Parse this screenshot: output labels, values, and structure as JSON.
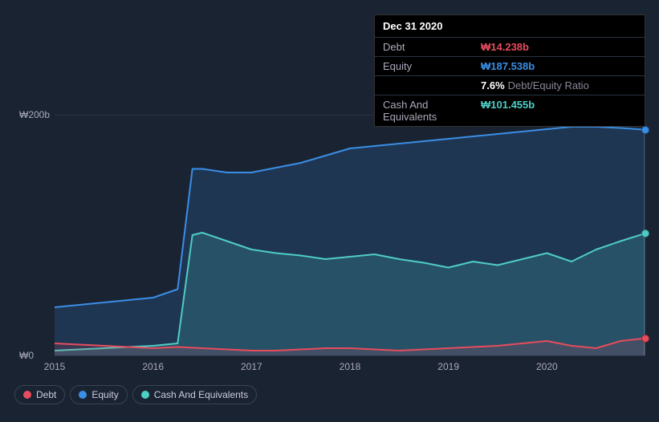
{
  "chart": {
    "type": "area-line",
    "background_color": "#1a2332",
    "plot_background_color": "#1f2a3a",
    "grid_color": "#2a3342",
    "text_color": "#aab",
    "font_size_axis": 12,
    "font_size_tooltip": 13,
    "x_range": [
      2015,
      2021
    ],
    "y_range": [
      0,
      200
    ],
    "y_ticks": [
      {
        "value": 0,
        "label": "₩0"
      },
      {
        "value": 200,
        "label": "₩200b"
      }
    ],
    "x_ticks": [
      {
        "value": 2015,
        "label": "2015"
      },
      {
        "value": 2016,
        "label": "2016"
      },
      {
        "value": 2017,
        "label": "2017"
      },
      {
        "value": 2018,
        "label": "2018"
      },
      {
        "value": 2019,
        "label": "2019"
      },
      {
        "value": 2020,
        "label": "2020"
      }
    ],
    "highlight_x": 2020.98,
    "series": [
      {
        "name": "Equity",
        "color": "#3a8ee6",
        "fill_color": "#3a8ee6",
        "fill_opacity": 0.18,
        "line_width": 2,
        "data": [
          [
            2015.0,
            40
          ],
          [
            2015.25,
            42
          ],
          [
            2015.5,
            44
          ],
          [
            2015.75,
            46
          ],
          [
            2016.0,
            48
          ],
          [
            2016.25,
            55
          ],
          [
            2016.4,
            155
          ],
          [
            2016.5,
            155
          ],
          [
            2016.75,
            152
          ],
          [
            2017.0,
            152
          ],
          [
            2017.25,
            156
          ],
          [
            2017.5,
            160
          ],
          [
            2017.75,
            166
          ],
          [
            2018.0,
            172
          ],
          [
            2018.25,
            174
          ],
          [
            2018.5,
            176
          ],
          [
            2018.75,
            178
          ],
          [
            2019.0,
            180
          ],
          [
            2019.25,
            182
          ],
          [
            2019.5,
            184
          ],
          [
            2019.75,
            186
          ],
          [
            2020.0,
            188
          ],
          [
            2020.25,
            190
          ],
          [
            2020.5,
            190
          ],
          [
            2020.75,
            189
          ],
          [
            2021.0,
            187.538
          ]
        ]
      },
      {
        "name": "Cash And Equivalents",
        "color": "#4ecdc4",
        "fill_color": "#4ecdc4",
        "fill_opacity": 0.18,
        "line_width": 2,
        "data": [
          [
            2015.0,
            4
          ],
          [
            2015.25,
            5
          ],
          [
            2015.5,
            6
          ],
          [
            2015.75,
            7
          ],
          [
            2016.0,
            8
          ],
          [
            2016.25,
            10
          ],
          [
            2016.4,
            100
          ],
          [
            2016.5,
            102
          ],
          [
            2016.75,
            95
          ],
          [
            2017.0,
            88
          ],
          [
            2017.25,
            85
          ],
          [
            2017.5,
            83
          ],
          [
            2017.75,
            80
          ],
          [
            2018.0,
            82
          ],
          [
            2018.25,
            84
          ],
          [
            2018.5,
            80
          ],
          [
            2018.75,
            77
          ],
          [
            2019.0,
            73
          ],
          [
            2019.25,
            78
          ],
          [
            2019.5,
            75
          ],
          [
            2019.75,
            80
          ],
          [
            2020.0,
            85
          ],
          [
            2020.25,
            78
          ],
          [
            2020.5,
            88
          ],
          [
            2020.75,
            95
          ],
          [
            2021.0,
            101.455
          ]
        ]
      },
      {
        "name": "Debt",
        "color": "#e74c5e",
        "fill_color": "#e74c5e",
        "fill_opacity": 0.15,
        "line_width": 2,
        "data": [
          [
            2015.0,
            10
          ],
          [
            2015.25,
            9
          ],
          [
            2015.5,
            8
          ],
          [
            2015.75,
            7
          ],
          [
            2016.0,
            6
          ],
          [
            2016.25,
            7
          ],
          [
            2016.5,
            6
          ],
          [
            2016.75,
            5
          ],
          [
            2017.0,
            4
          ],
          [
            2017.25,
            4
          ],
          [
            2017.5,
            5
          ],
          [
            2017.75,
            6
          ],
          [
            2018.0,
            6
          ],
          [
            2018.25,
            5
          ],
          [
            2018.5,
            4
          ],
          [
            2018.75,
            5
          ],
          [
            2019.0,
            6
          ],
          [
            2019.25,
            7
          ],
          [
            2019.5,
            8
          ],
          [
            2019.75,
            10
          ],
          [
            2020.0,
            12
          ],
          [
            2020.25,
            8
          ],
          [
            2020.5,
            6
          ],
          [
            2020.75,
            12
          ],
          [
            2021.0,
            14.238
          ]
        ]
      }
    ]
  },
  "tooltip": {
    "date": "Dec 31 2020",
    "rows": [
      {
        "label": "Debt",
        "value": "₩14.238b",
        "color": "#e74c5e"
      },
      {
        "label": "Equity",
        "value": "₩187.538b",
        "color": "#3a8ee6"
      },
      {
        "label": "",
        "value": "7.6%",
        "suffix": "Debt/Equity Ratio",
        "color": "#ffffff"
      },
      {
        "label": "Cash And Equivalents",
        "value": "₩101.455b",
        "color": "#4ecdc4"
      }
    ]
  },
  "legend": {
    "items": [
      {
        "label": "Debt",
        "color": "#e74c5e"
      },
      {
        "label": "Equity",
        "color": "#3a8ee6"
      },
      {
        "label": "Cash And Equivalents",
        "color": "#4ecdc4"
      }
    ]
  }
}
